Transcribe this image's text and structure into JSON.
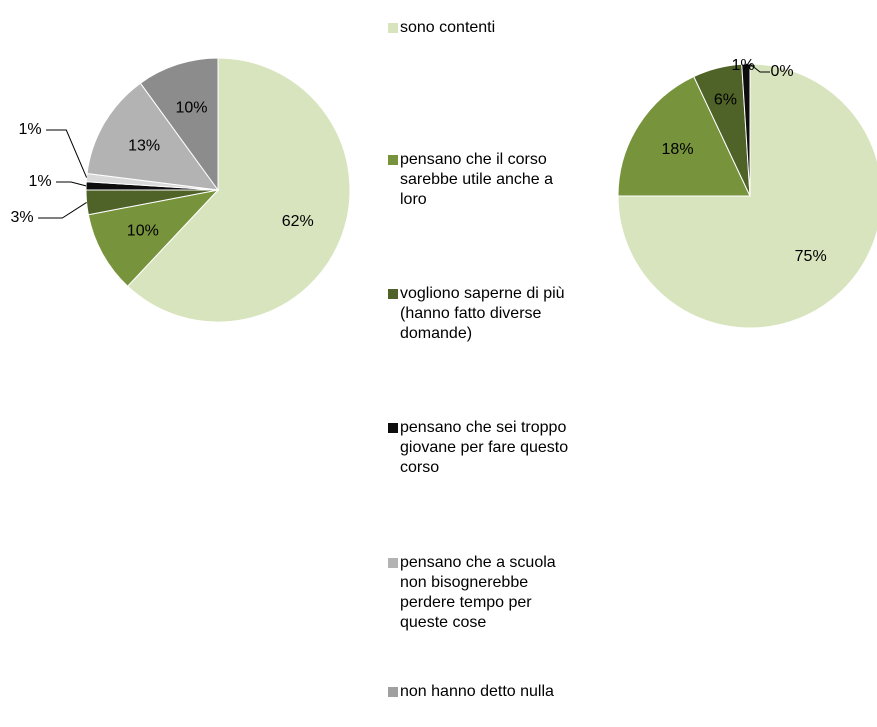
{
  "chart_data": [
    {
      "type": "pie",
      "categories": [
        "sono contenti",
        "pensano che il corso sarebbe utile anche a loro",
        "vogliono saperne di più (hanno fatto diverse domande)",
        "pensano che sei troppo giovane per fare questo corso",
        null,
        "pensano che a scuola non bisognerebbe perdere tempo per queste cose",
        "non hanno detto nulla"
      ],
      "colors": [
        "#d7e4bd",
        "#77933c",
        "#4f6228",
        "#0d0d0d",
        "#d9d9d9",
        "#b3b3b3",
        "#8c8c8c"
      ],
      "values": [
        62,
        10,
        3,
        1,
        1,
        13,
        10
      ],
      "value_labels": [
        "62%",
        "10%",
        "3%",
        "1%",
        "1%",
        "13%",
        "10%"
      ]
    },
    {
      "type": "pie",
      "values": [
        75,
        18,
        6,
        1,
        0,
        null,
        null
      ],
      "value_labels": [
        "75%",
        "18%",
        "6%",
        "1%",
        "0%",
        null,
        null
      ]
    }
  ]
}
